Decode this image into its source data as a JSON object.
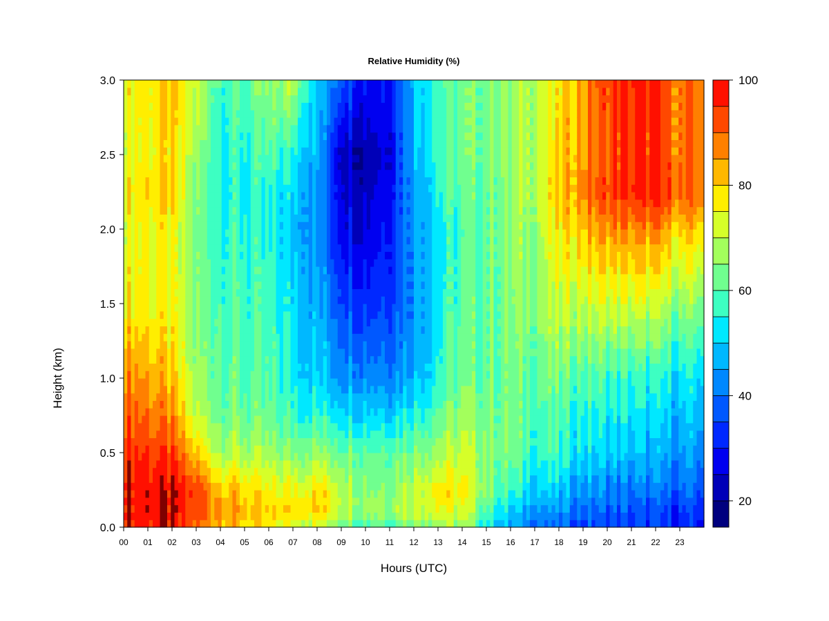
{
  "chart_data": {
    "type": "heatmap",
    "title": "Relative Humidity (%)",
    "xlabel": "Hours (UTC)",
    "ylabel": "Height (km)",
    "x_ticks": [
      "00",
      "01",
      "02",
      "03",
      "04",
      "05",
      "06",
      "07",
      "08",
      "09",
      "10",
      "11",
      "12",
      "13",
      "14",
      "15",
      "16",
      "17",
      "18",
      "19",
      "20",
      "21",
      "22",
      "23"
    ],
    "y_ticks": [
      "0.0",
      "0.5",
      "1.0",
      "1.5",
      "2.0",
      "2.5",
      "3.0"
    ],
    "xlim": [
      0,
      24
    ],
    "ylim": [
      0,
      3
    ],
    "colorbar": {
      "ticks": [
        "20",
        "40",
        "60",
        "80",
        "100"
      ],
      "range": [
        15,
        100
      ],
      "levels": [
        15,
        20,
        25,
        30,
        35,
        40,
        45,
        50,
        55,
        60,
        65,
        70,
        75,
        80,
        85,
        90,
        95,
        100
      ],
      "colors": [
        "#00007f",
        "#0000b8",
        "#0000f0",
        "#0028ff",
        "#0058ff",
        "#0088ff",
        "#00b8ff",
        "#00e8ff",
        "#3dffc2",
        "#70ff8f",
        "#a3ff5c",
        "#d6ff29",
        "#ffee00",
        "#ffb800",
        "#ff8000",
        "#ff4800",
        "#ff1000",
        "#c40000",
        "#7f0000"
      ]
    },
    "grid_hours": [
      0,
      1,
      2,
      3,
      4,
      5,
      6,
      7,
      8,
      9,
      10,
      11,
      12,
      13,
      14,
      15,
      16,
      17,
      18,
      19,
      20,
      21,
      22,
      23
    ],
    "grid_heights_km": [
      0.0,
      0.1,
      0.25,
      0.5,
      0.75,
      1.0,
      1.5,
      2.0,
      2.25,
      2.5,
      3.0
    ],
    "rh_percent": [
      [
        98,
        98,
        96,
        88,
        85,
        78,
        75,
        72,
        70,
        65,
        60,
        60,
        65,
        68,
        65,
        55,
        45,
        40,
        38,
        35,
        35,
        33,
        32,
        30
      ],
      [
        99,
        99,
        98,
        92,
        86,
        82,
        78,
        80,
        80,
        72,
        68,
        68,
        72,
        75,
        72,
        60,
        48,
        45,
        42,
        40,
        38,
        36,
        35,
        33
      ],
      [
        99,
        99,
        98,
        93,
        84,
        80,
        74,
        76,
        78,
        72,
        66,
        66,
        72,
        78,
        76,
        66,
        56,
        52,
        48,
        45,
        42,
        40,
        40,
        38
      ],
      [
        96,
        95,
        92,
        80,
        70,
        68,
        66,
        65,
        66,
        64,
        62,
        62,
        64,
        68,
        70,
        66,
        62,
        58,
        56,
        52,
        50,
        48,
        46,
        44
      ],
      [
        92,
        90,
        85,
        70,
        64,
        62,
        60,
        58,
        56,
        54,
        52,
        52,
        56,
        62,
        66,
        64,
        62,
        60,
        58,
        56,
        54,
        52,
        50,
        48
      ],
      [
        88,
        85,
        80,
        66,
        62,
        60,
        58,
        55,
        50,
        46,
        44,
        44,
        48,
        56,
        62,
        62,
        62,
        62,
        62,
        60,
        58,
        56,
        55,
        52
      ],
      [
        78,
        76,
        74,
        64,
        60,
        58,
        56,
        52,
        46,
        38,
        34,
        36,
        44,
        54,
        60,
        62,
        64,
        66,
        70,
        72,
        72,
        72,
        70,
        65
      ],
      [
        74,
        76,
        74,
        62,
        58,
        56,
        54,
        50,
        44,
        30,
        26,
        32,
        46,
        54,
        58,
        62,
        65,
        68,
        76,
        82,
        86,
        86,
        86,
        80
      ],
      [
        78,
        80,
        80,
        64,
        56,
        55,
        54,
        52,
        44,
        28,
        24,
        30,
        46,
        56,
        60,
        62,
        66,
        70,
        80,
        88,
        94,
        96,
        96,
        90
      ],
      [
        74,
        76,
        78,
        66,
        56,
        56,
        58,
        56,
        46,
        26,
        22,
        28,
        48,
        58,
        62,
        64,
        66,
        70,
        78,
        86,
        92,
        94,
        94,
        88
      ],
      [
        76,
        78,
        80,
        72,
        60,
        60,
        64,
        70,
        50,
        40,
        30,
        32,
        50,
        60,
        62,
        64,
        66,
        70,
        76,
        86,
        94,
        96,
        94,
        88
      ]
    ]
  }
}
